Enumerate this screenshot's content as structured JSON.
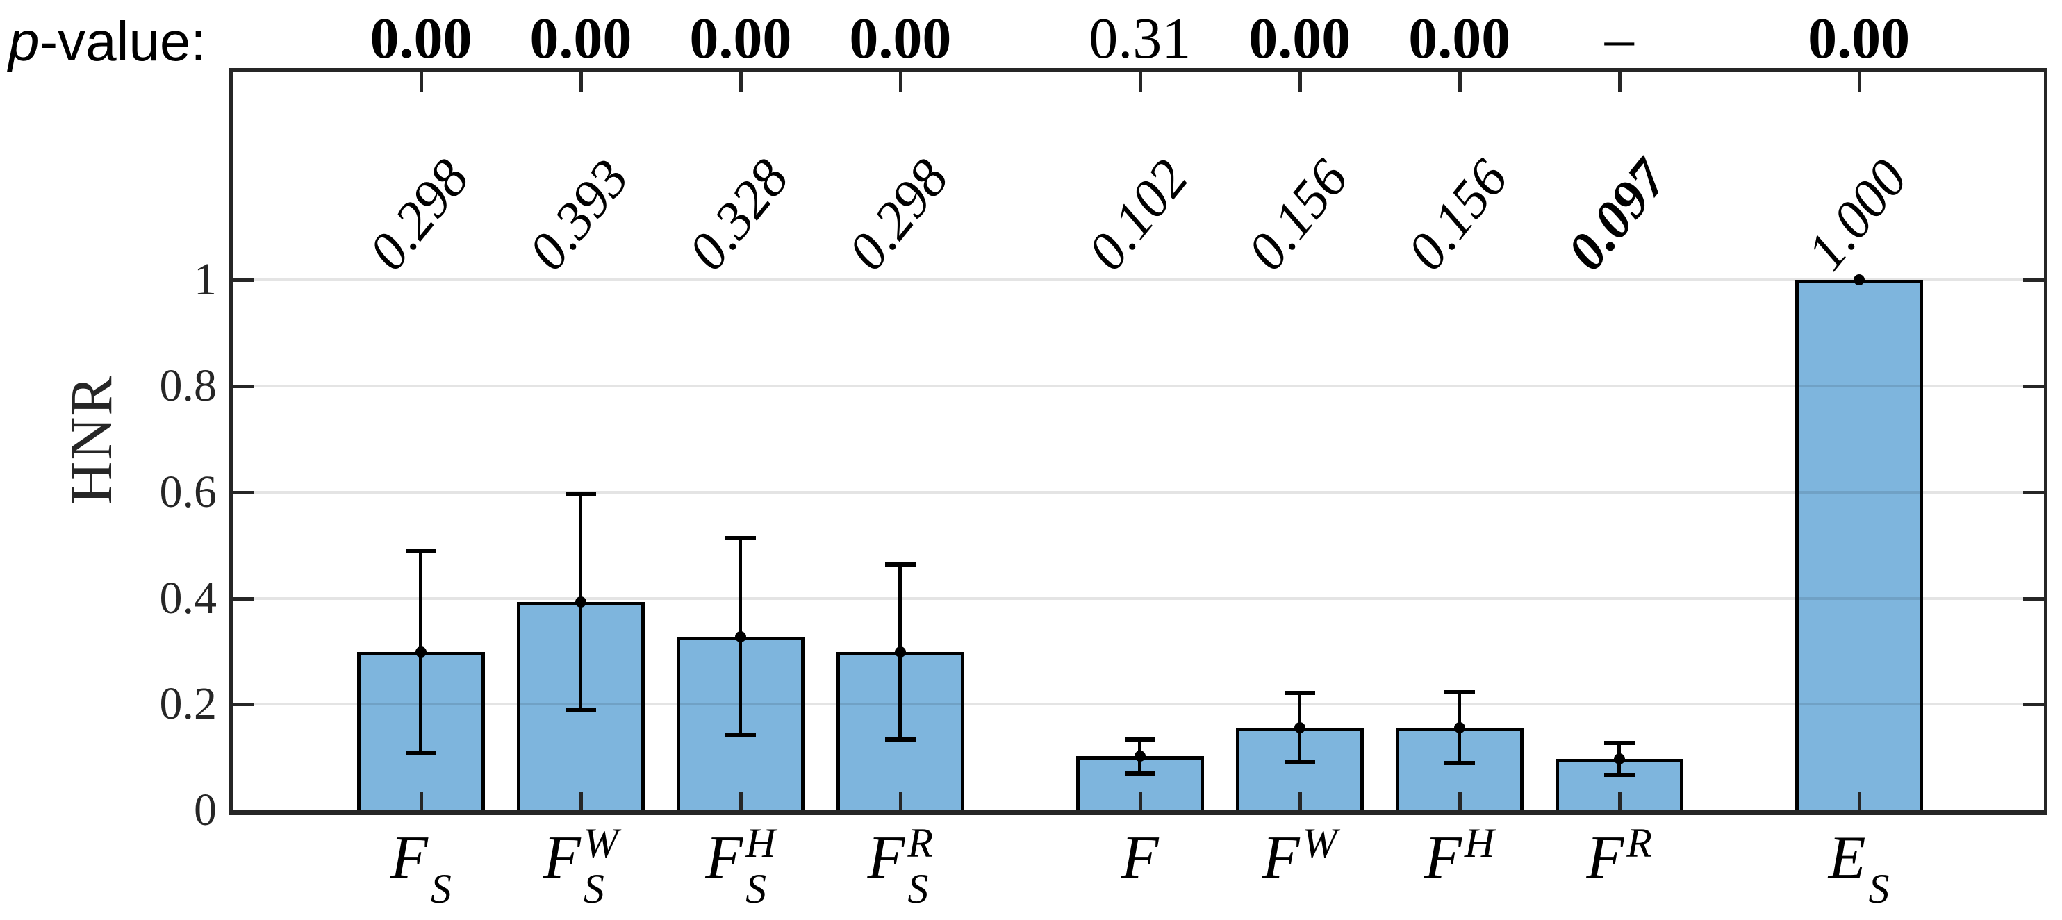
{
  "chart_data": {
    "type": "bar",
    "title": "",
    "ylabel": "HNR",
    "p_row_label_italic": "p",
    "p_row_label_rest": "-value:",
    "ylim": [
      0,
      1.4
    ],
    "xlim": [
      0,
      11.38
    ],
    "bar_width_units": 0.8,
    "grid_on": true,
    "grid_values": [
      0.2,
      0.4,
      0.6,
      0.8,
      1.0
    ],
    "yticks": [
      {
        "value": 0,
        "label": "0"
      },
      {
        "value": 0.2,
        "label": "0.2"
      },
      {
        "value": 0.4,
        "label": "0.4"
      },
      {
        "value": 0.6,
        "label": "0.6"
      },
      {
        "value": 0.8,
        "label": "0.8"
      },
      {
        "value": 1,
        "label": "1"
      }
    ],
    "colors": {
      "bar_fill": "#7EB5DD",
      "bar_edge": "#000000",
      "axis": "#262626",
      "grid": "rgba(0,0,0,0.105)",
      "error": "#000000"
    },
    "bars": [
      {
        "x": 1.2,
        "label_main": "F",
        "label_sub": "S",
        "label_sup": "",
        "value": 0.298,
        "error": 0.19,
        "value_label": "0.298",
        "value_label_bold": false,
        "p_value": "0.00",
        "p_value_bold": true
      },
      {
        "x": 2.2,
        "label_main": "F",
        "label_sub": "S",
        "label_sup": "W",
        "value": 0.393,
        "error": 0.203,
        "value_label": "0.393",
        "value_label_bold": false,
        "p_value": "0.00",
        "p_value_bold": true
      },
      {
        "x": 3.2,
        "label_main": "F",
        "label_sub": "S",
        "label_sup": "H",
        "value": 0.328,
        "error": 0.185,
        "value_label": "0.328",
        "value_label_bold": false,
        "p_value": "0.00",
        "p_value_bold": true
      },
      {
        "x": 4.2,
        "label_main": "F",
        "label_sub": "S",
        "label_sup": "R",
        "value": 0.298,
        "error": 0.165,
        "value_label": "0.298",
        "value_label_bold": false,
        "p_value": "0.00",
        "p_value_bold": true
      },
      {
        "x": 5.7,
        "label_main": "F",
        "label_sub": "",
        "label_sup": "",
        "value": 0.102,
        "error": 0.032,
        "value_label": "0.102",
        "value_label_bold": false,
        "p_value": "0.31",
        "p_value_bold": false
      },
      {
        "x": 6.7,
        "label_main": "F",
        "label_sub": "",
        "label_sup": "W",
        "value": 0.156,
        "error": 0.065,
        "value_label": "0.156",
        "value_label_bold": false,
        "p_value": "0.00",
        "p_value_bold": true
      },
      {
        "x": 7.7,
        "label_main": "F",
        "label_sub": "",
        "label_sup": "H",
        "value": 0.156,
        "error": 0.067,
        "value_label": "0.156",
        "value_label_bold": false,
        "p_value": "0.00",
        "p_value_bold": true
      },
      {
        "x": 8.7,
        "label_main": "F",
        "label_sub": "",
        "label_sup": "R",
        "value": 0.097,
        "error": 0.03,
        "value_label": "0.097",
        "value_label_bold": true,
        "p_value": "–",
        "p_value_bold": false
      },
      {
        "x": 10.2,
        "label_main": "E",
        "label_sub": "S",
        "label_sup": "",
        "value": 1.0,
        "error": 0.0,
        "value_label": "1.000",
        "value_label_bold": false,
        "p_value": "0.00",
        "p_value_bold": true
      }
    ]
  }
}
